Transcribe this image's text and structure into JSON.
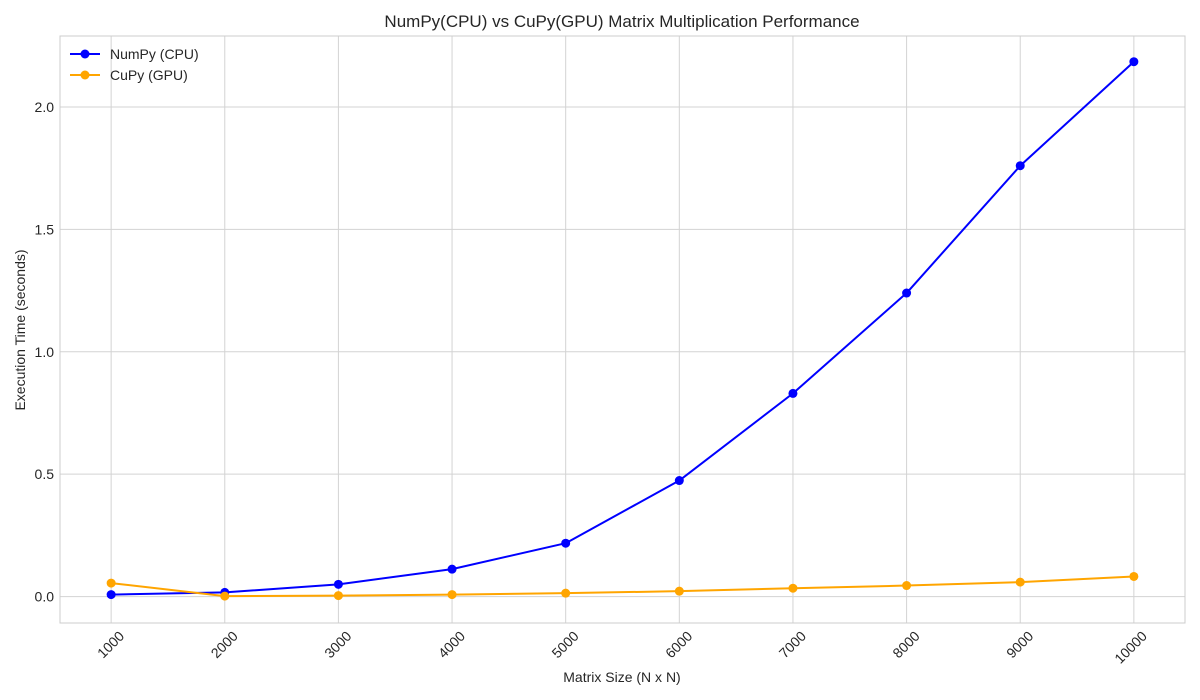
{
  "chart_data": {
    "type": "line",
    "title": "NumPy(CPU) vs CuPy(GPU) Matrix Multiplication Performance",
    "xlabel": "Matrix Size (N x N)",
    "ylabel": "Execution Time (seconds)",
    "x": [
      1000,
      2000,
      3000,
      4000,
      5000,
      6000,
      7000,
      8000,
      9000,
      10000
    ],
    "x_tick_labels": [
      "1000",
      "2000",
      "3000",
      "4000",
      "5000",
      "6000",
      "7000",
      "8000",
      "9000",
      "10000"
    ],
    "y_ticks": [
      0.0,
      0.5,
      1.0,
      1.5,
      2.0
    ],
    "y_tick_labels": [
      "0.0",
      "0.5",
      "1.0",
      "1.5",
      "2.0"
    ],
    "xlim": [
      550,
      10450
    ],
    "ylim": [
      -0.108,
      2.29
    ],
    "grid": true,
    "legend_position": "top-left",
    "marker": "circle",
    "series": [
      {
        "name": "NumPy (CPU)",
        "color": "#0000ff",
        "values": [
          0.008,
          0.017,
          0.05,
          0.112,
          0.218,
          0.474,
          0.83,
          1.24,
          1.76,
          2.185
        ]
      },
      {
        "name": "CuPy (GPU)",
        "color": "#ffa500",
        "values": [
          0.055,
          0.002,
          0.004,
          0.008,
          0.014,
          0.022,
          0.034,
          0.045,
          0.059,
          0.082
        ]
      }
    ]
  }
}
